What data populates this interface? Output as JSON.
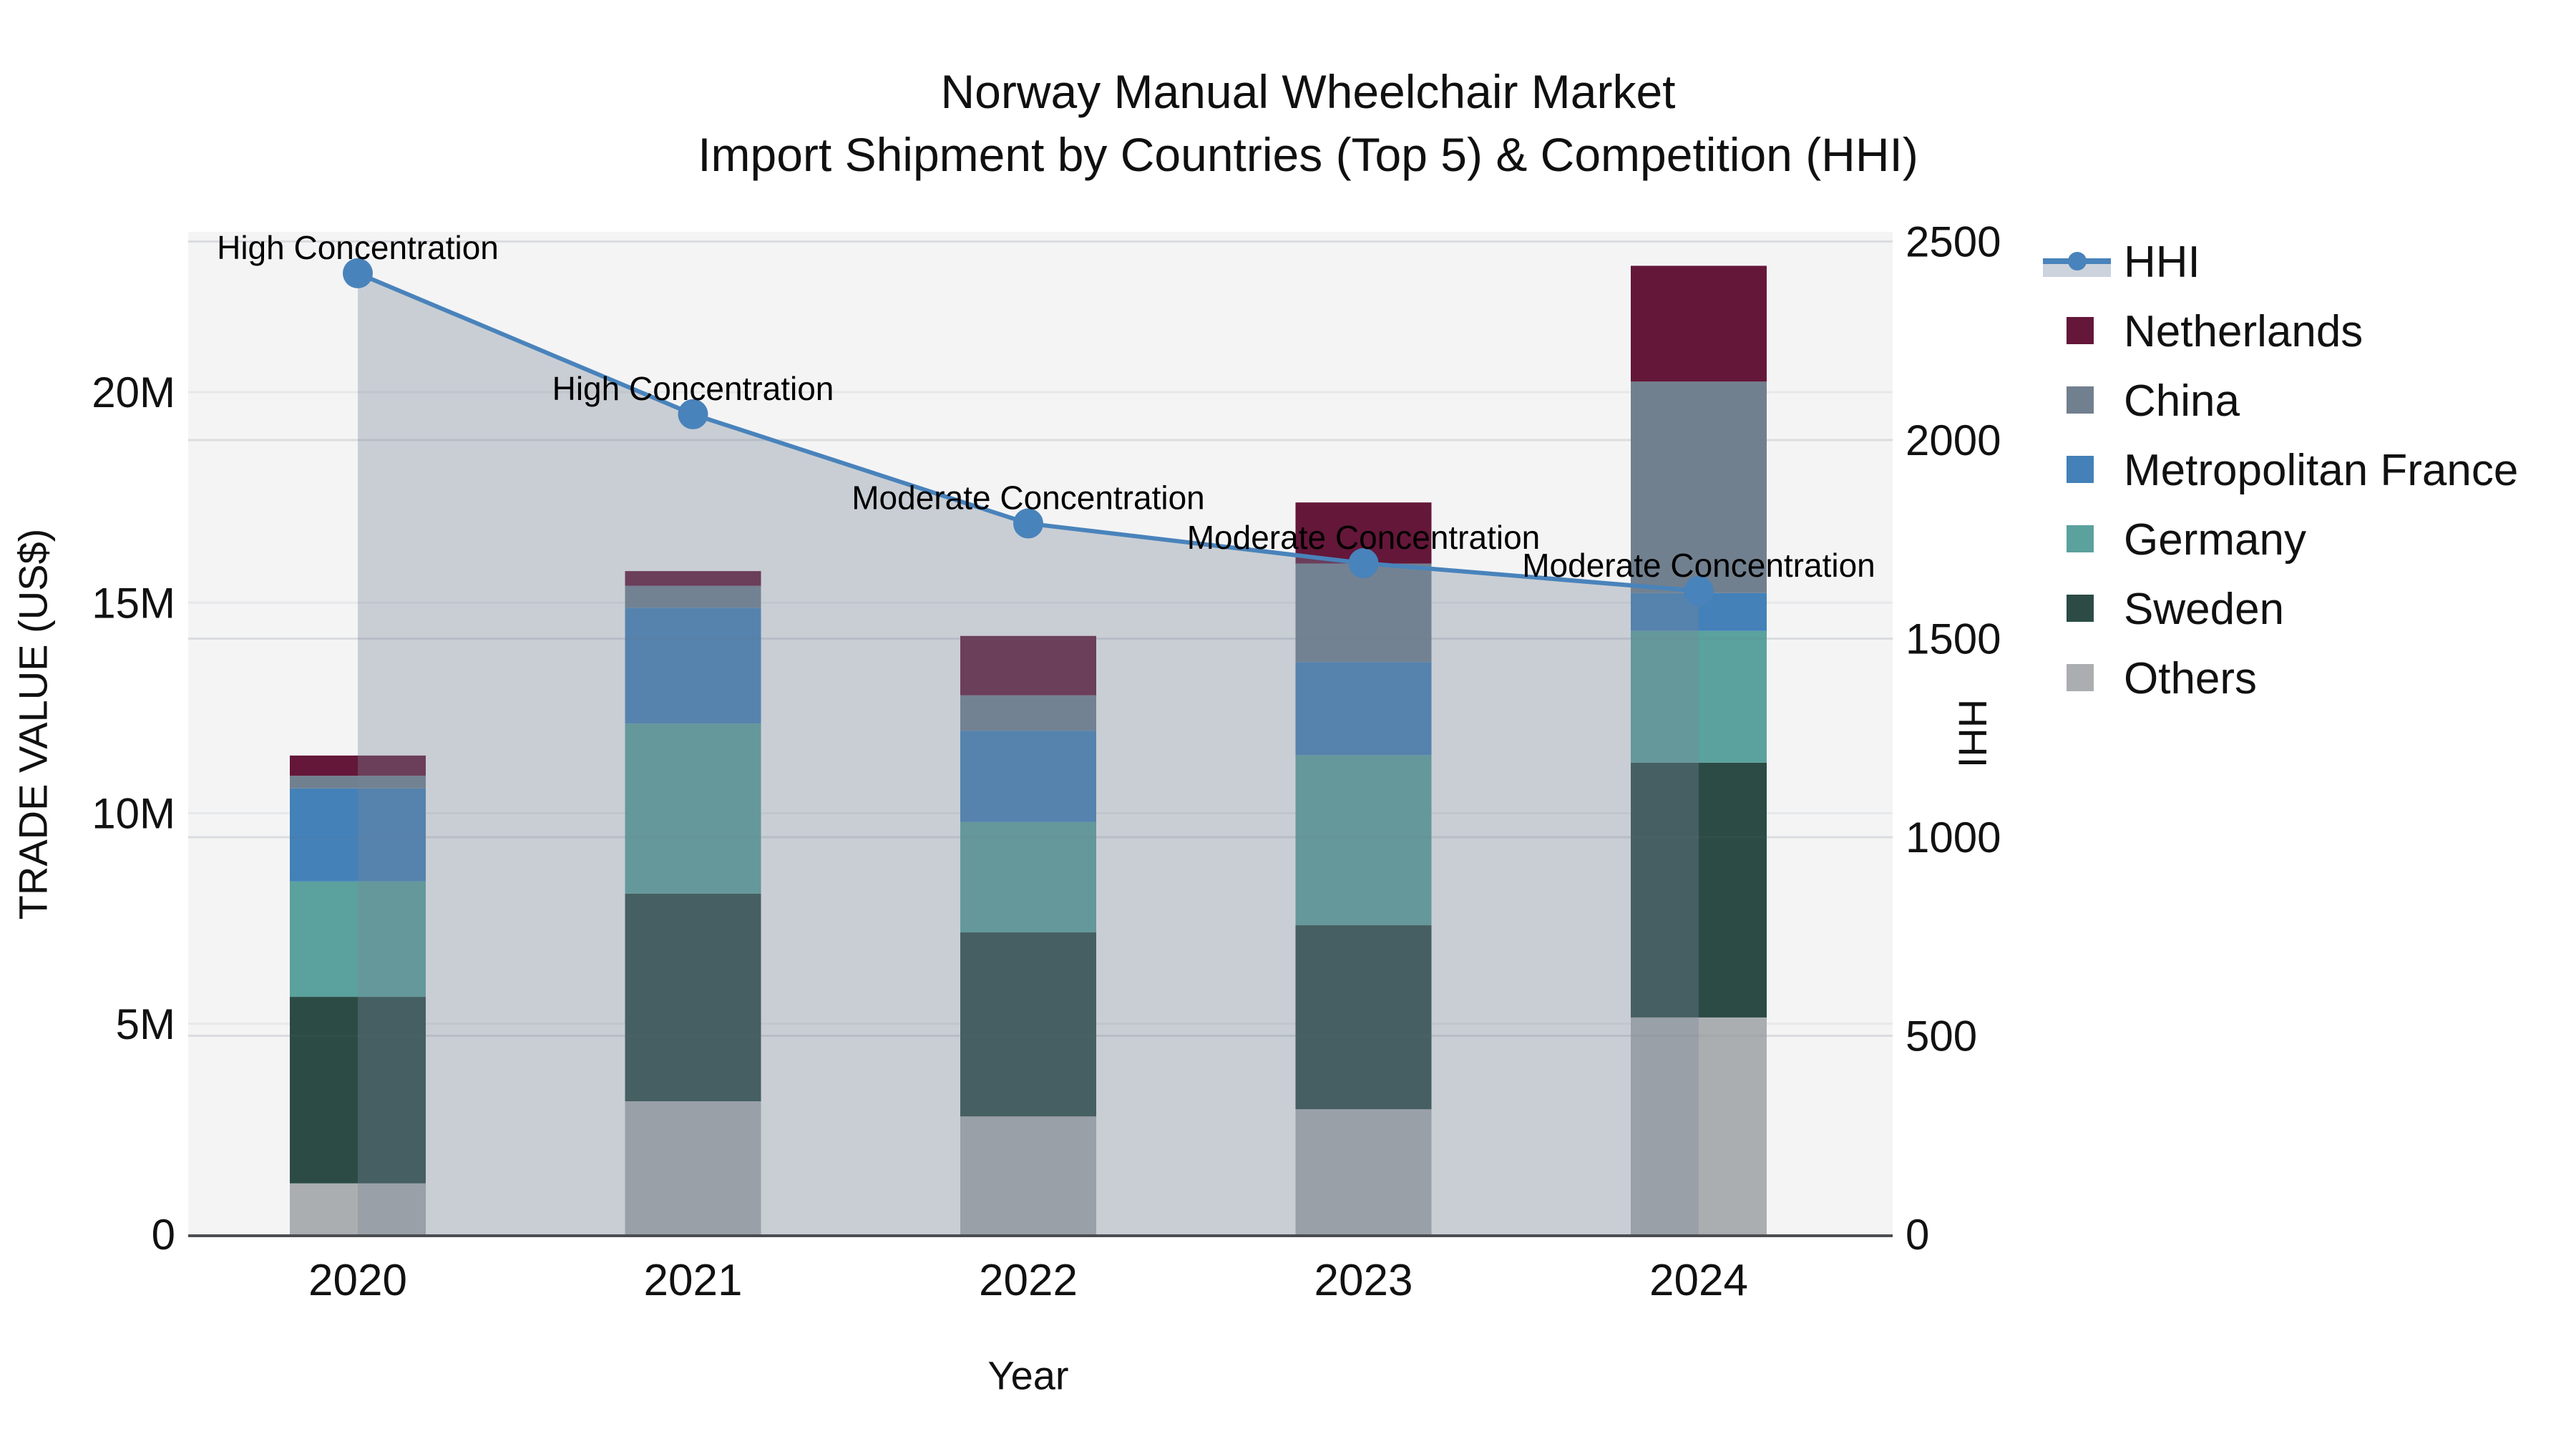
{
  "title": {
    "line1": "Norway Manual Wheelchair Market",
    "line2": "Import Shipment by Countries (Top 5) & Competition (HHI)"
  },
  "chart_data": {
    "type": "stacked-bar+line",
    "x": [
      "2020",
      "2021",
      "2022",
      "2023",
      "2024"
    ],
    "xlabel": "Year",
    "ylabel_left": "TRADE VALUE (US$)",
    "ylabel_right": "HHI",
    "y_left_ticks": [
      {
        "label": "0",
        "value_musd": 0
      },
      {
        "label": "5M",
        "value_musd": 5
      },
      {
        "label": "10M",
        "value_musd": 10
      },
      {
        "label": "15M",
        "value_musd": 15
      },
      {
        "label": "20M",
        "value_musd": 20
      }
    ],
    "y_right_ticks": [
      {
        "label": "0",
        "value": 0
      },
      {
        "label": "500",
        "value": 500
      },
      {
        "label": "1000",
        "value": 1000
      },
      {
        "label": "1500",
        "value": 1500
      },
      {
        "label": "2000",
        "value": 2000
      },
      {
        "label": "2500",
        "value": 2500
      }
    ],
    "y_left_range_musd": [
      0,
      23.8
    ],
    "y_right_range": [
      0,
      2525
    ],
    "grid": true,
    "legend_position": "right",
    "series": [
      {
        "name": "Netherlands",
        "color": "#641739",
        "values_musd": [
          0.48,
          0.35,
          1.41,
          1.45,
          2.75
        ]
      },
      {
        "name": "China",
        "color": "#71808f",
        "values_musd": [
          0.3,
          0.52,
          0.84,
          2.34,
          5.02
        ]
      },
      {
        "name": "Metropolitan France",
        "color": "#4381b8",
        "values_musd": [
          2.21,
          2.75,
          2.17,
          2.21,
          0.9
        ]
      },
      {
        "name": "Germany",
        "color": "#5ba19d",
        "values_musd": [
          2.74,
          4.04,
          2.62,
          4.04,
          3.13
        ]
      },
      {
        "name": "Sweden",
        "color": "#2c4b45",
        "values_musd": [
          4.43,
          4.93,
          4.37,
          4.37,
          6.05
        ]
      },
      {
        "name": "Others",
        "color": "#abaeb0",
        "values_musd": [
          1.21,
          3.16,
          2.8,
          2.97,
          5.15
        ]
      }
    ],
    "bar_totals_musd": [
      11.37,
      15.75,
      14.21,
      17.38,
      23.0
    ],
    "hhi_line": {
      "name": "HHI",
      "color": "#4983bb",
      "area_fill": "rgba(119,136,153,0.35)",
      "legend_band_color": "#ccd3dd",
      "values": [
        2420,
        2065,
        1790,
        1690,
        1620
      ]
    },
    "annotations": [
      {
        "x": "2020",
        "text": "High Concentration"
      },
      {
        "x": "2021",
        "text": "High Concentration"
      },
      {
        "x": "2022",
        "text": "Moderate Concentration"
      },
      {
        "x": "2023",
        "text": "Moderate Concentration"
      },
      {
        "x": "2024",
        "text": "Moderate Concentration"
      }
    ],
    "legend_order": [
      "HHI",
      "Netherlands",
      "China",
      "Metropolitan France",
      "Germany",
      "Sweden",
      "Others"
    ],
    "colors": {
      "plot_background": "#f4f4f5",
      "gridline": "#e7e8ea",
      "axis_line": "#4b4d50",
      "text": "#111111"
    }
  }
}
